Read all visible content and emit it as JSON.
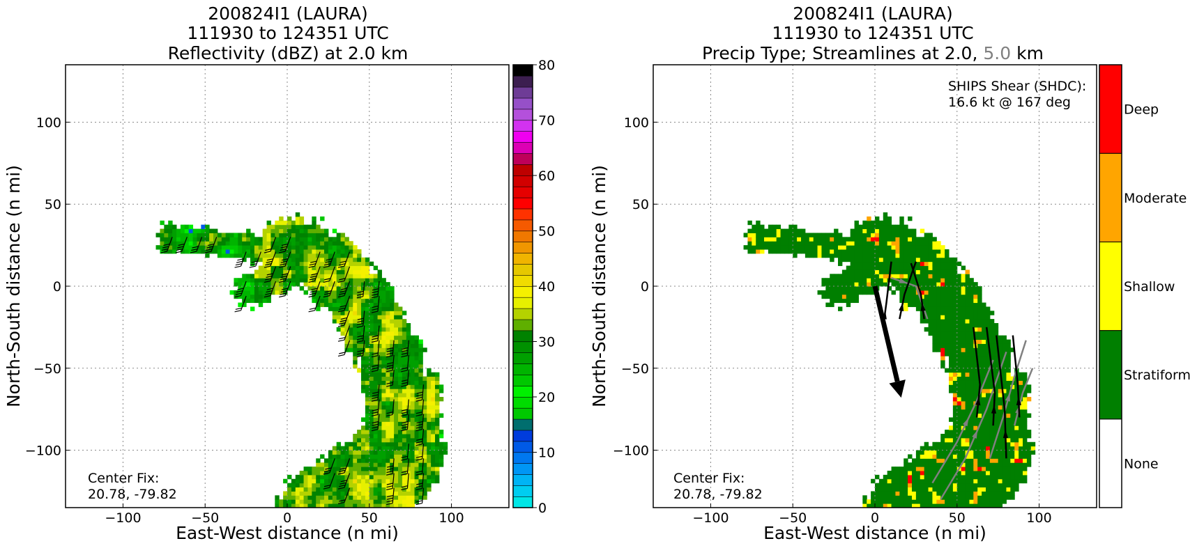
{
  "chart_data": [
    {
      "type": "heatmap",
      "title_lines": [
        "200824I1 (LAURA)",
        "111930 to 124351 UTC",
        "Reflectivity (dBZ) at 2.0 km"
      ],
      "xlabel": "East-West distance (n mi)",
      "ylabel": "North-South distance (n mi)",
      "xlim": [
        -135,
        135
      ],
      "ylim": [
        -135,
        135
      ],
      "xticks": [
        -100,
        -50,
        0,
        50,
        100
      ],
      "xtick_labels": [
        "−100",
        "−50",
        "0",
        "50",
        "100"
      ],
      "yticks": [
        -100,
        -50,
        0,
        50,
        100
      ],
      "ytick_labels": [
        "−100",
        "−50",
        "0",
        "50",
        "100"
      ],
      "grid": true,
      "annotation": [
        "Center Fix:",
        "20.78, -79.82"
      ],
      "colorbar": {
        "min": 0,
        "max": 80,
        "step": 2.5,
        "ticks": [
          0,
          10,
          20,
          30,
          40,
          50,
          60,
          70,
          80
        ],
        "tick_labels": [
          "0",
          "10",
          "20",
          "30",
          "40",
          "50",
          "60",
          "70",
          "80"
        ],
        "colors": [
          "#00e6e6",
          "#00cdf0",
          "#00b4f5",
          "#0096f5",
          "#0078f0",
          "#005ae6",
          "#003cdc",
          "#006e6e",
          "#00c800",
          "#00dc00",
          "#00f000",
          "#00c800",
          "#00b400",
          "#00a000",
          "#009100",
          "#008200",
          "#5faf00",
          "#b4d200",
          "#e6f000",
          "#f5f000",
          "#f0dc00",
          "#e6c800",
          "#f0b400",
          "#f09600",
          "#f07800",
          "#f55a00",
          "#ff3200",
          "#ff0000",
          "#e60000",
          "#d20000",
          "#be0000",
          "#be005a",
          "#dc00b4",
          "#f000f0",
          "#d232f0",
          "#b450dc",
          "#9650c8",
          "#6e3c96",
          "#3c1e50",
          "#000000"
        ]
      },
      "wind_barbs_present": true
    },
    {
      "type": "heatmap",
      "title_lines": [
        "200824I1 (LAURA)",
        "111930 to 124351 UTC"
      ],
      "title_line3": {
        "prefix": "Precip Type; Streamlines at 2.0,",
        "gray": "5.0",
        "suffix": "km"
      },
      "xlabel": "East-West distance (n mi)",
      "ylabel": "North-South distance (n mi)",
      "xlim": [
        -135,
        135
      ],
      "ylim": [
        -135,
        135
      ],
      "xticks": [
        -100,
        -50,
        0,
        50,
        100
      ],
      "xtick_labels": [
        "−100",
        "−50",
        "0",
        "50",
        "100"
      ],
      "yticks": [
        -100,
        -50,
        0,
        50,
        100
      ],
      "ytick_labels": [
        "−100",
        "−50",
        "0",
        "50",
        "100"
      ],
      "grid": true,
      "annotation": [
        "Center Fix:",
        "20.78, -79.82"
      ],
      "shear_text": [
        "SHIPS Shear (SHDC):",
        "16.6 kt @ 167 deg"
      ],
      "shear_speed_kt": 16.6,
      "shear_direction_deg": 167,
      "shear_arrow": {
        "from": [
          0,
          0
        ],
        "to": [
          16,
          -68
        ]
      },
      "categories": [
        {
          "label": "None",
          "color": "#ffffff"
        },
        {
          "label": "Stratiform",
          "color": "#007f00"
        },
        {
          "label": "Shallow",
          "color": "#ffff00"
        },
        {
          "label": "Moderate",
          "color": "#ffa500"
        },
        {
          "label": "Deep",
          "color": "#ff0000"
        }
      ],
      "streamlines_black": [
        [
          [
            5,
            -25
          ],
          [
            7,
            -10
          ],
          [
            10,
            15
          ]
        ],
        [
          [
            15,
            -20
          ],
          [
            18,
            -5
          ],
          [
            25,
            15
          ]
        ],
        [
          [
            30,
            -20
          ],
          [
            28,
            -5
          ],
          [
            22,
            14
          ]
        ],
        [
          [
            62,
            -80
          ],
          [
            64,
            -60
          ],
          [
            60,
            -25
          ]
        ],
        [
          [
            72,
            -85
          ],
          [
            73,
            -65
          ],
          [
            68,
            -25
          ]
        ],
        [
          [
            80,
            -105
          ],
          [
            79,
            -75
          ],
          [
            74,
            -30
          ]
        ],
        [
          [
            88,
            -80
          ],
          [
            87,
            -60
          ],
          [
            84,
            -30
          ]
        ]
      ],
      "streamlines_gray": [
        [
          [
            40,
            -130
          ],
          [
            55,
            -105
          ],
          [
            68,
            -75
          ],
          [
            80,
            -40
          ]
        ],
        [
          [
            35,
            -120
          ],
          [
            50,
            -95
          ],
          [
            62,
            -70
          ],
          [
            72,
            -45
          ]
        ],
        [
          [
            70,
            -105
          ],
          [
            78,
            -80
          ],
          [
            85,
            -55
          ],
          [
            92,
            -33
          ]
        ],
        [
          [
            85,
            -85
          ],
          [
            90,
            -65
          ],
          [
            96,
            -50
          ]
        ],
        [
          [
            10,
            5
          ],
          [
            25,
            0
          ],
          [
            32,
            -20
          ]
        ]
      ]
    }
  ]
}
